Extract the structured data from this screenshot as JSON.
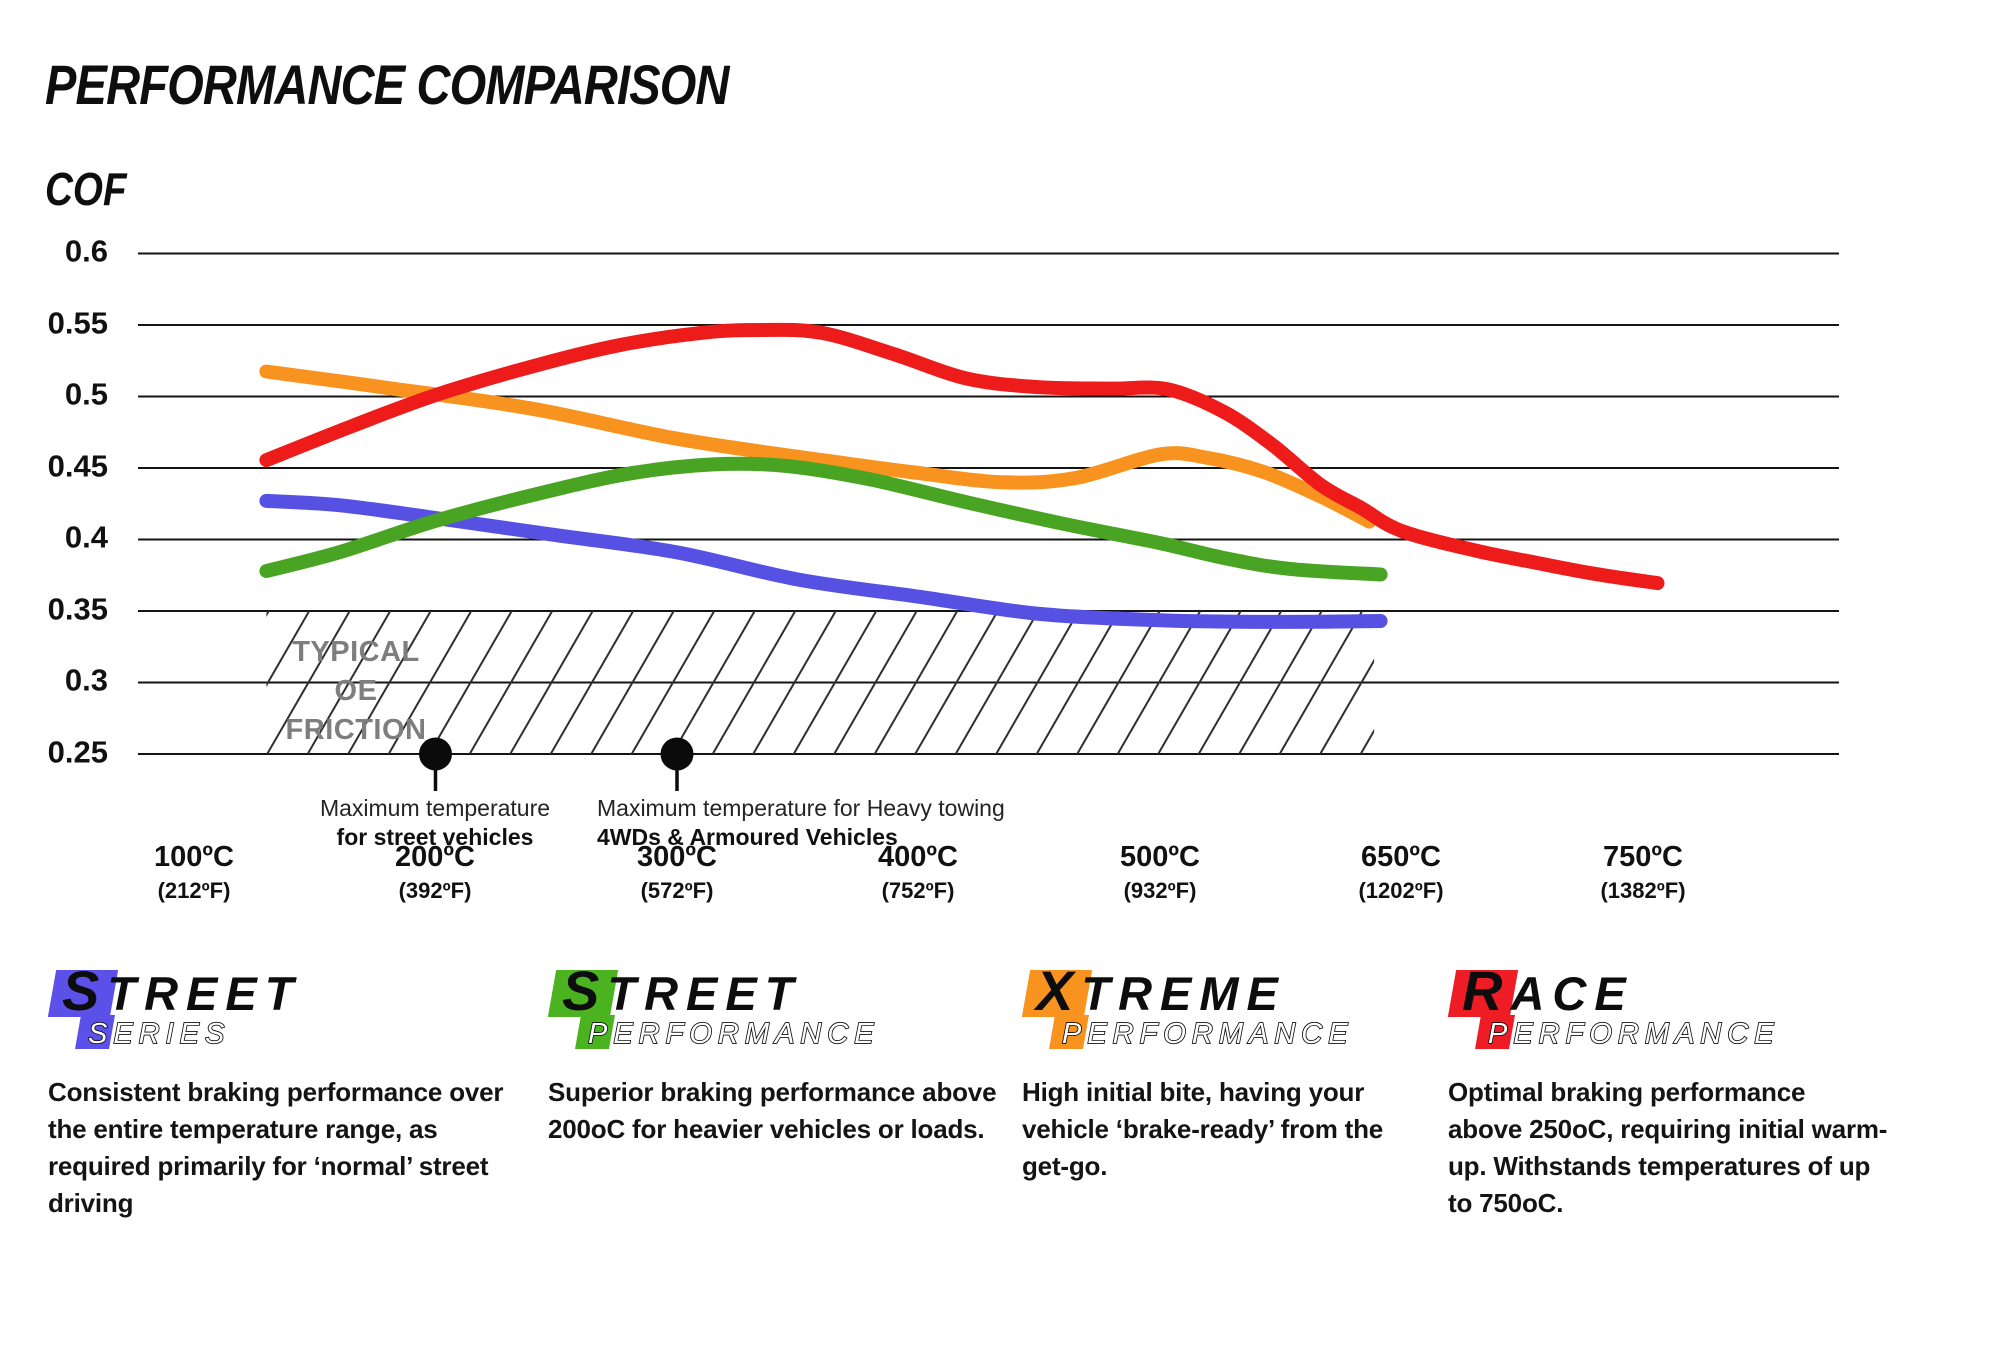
{
  "page": {
    "title": "PERFORMANCE COMPARISON",
    "axis_label": "COF"
  },
  "chart": {
    "y_labels": [
      "0.6",
      "0.55",
      "0.5",
      "0.45",
      "0.4",
      "0.35",
      "0.3",
      "0.25"
    ],
    "x_ticks": [
      {
        "c": "100ºC",
        "f": "(212ºF)"
      },
      {
        "c": "200ºC",
        "f": "(392ºF)"
      },
      {
        "c": "300ºC",
        "f": "(572ºF)"
      },
      {
        "c": "400ºC",
        "f": "(752ºF)"
      },
      {
        "c": "500ºC",
        "f": "(932ºF)"
      },
      {
        "c": "650ºC",
        "f": "(1202ºF)"
      },
      {
        "c": "750ºC",
        "f": "(1382ºF)"
      }
    ],
    "band_label": "TYPICAL OE\nFRICTION",
    "annotations": [
      {
        "line1": "Maximum temperature",
        "line2": "for street vehicles"
      },
      {
        "line1": "Maximum temperature for Heavy towing",
        "line2": "4WDs & Armoured Vehicles"
      }
    ]
  },
  "chart_data": {
    "type": "line",
    "title": "PERFORMANCE COMPARISON",
    "ylabel": "COF",
    "ylim": [
      0.25,
      0.6
    ],
    "y_gridlines": [
      0.6,
      0.55,
      0.5,
      0.45,
      0.4,
      0.35,
      0.3,
      0.25
    ],
    "categories_c": [
      100,
      200,
      300,
      400,
      500,
      650,
      750
    ],
    "x_tick_labels": [
      "100ºC (212ºF)",
      "200ºC (392ºF)",
      "300ºC (572ºF)",
      "400ºC (752ºF)",
      "500ºC (932ºF)",
      "650ºC (1202ºF)",
      "750ºC (1382ºF)"
    ],
    "grid": true,
    "legend_position": "bottom",
    "band": {
      "label": "TYPICAL OE FRICTION",
      "cof_min": 0.25,
      "cof_max": 0.35,
      "temp_min_c": 130,
      "temp_max_c": 633
    },
    "annotations": [
      {
        "temp_c": 200,
        "cof": 0.25,
        "line1": "Maximum temperature",
        "line2": "for street vehicles"
      },
      {
        "temp_c": 300,
        "cof": 0.25,
        "line1": "Maximum temperature for Heavy towing",
        "line2": "4WDs & Armoured Vehicles"
      }
    ],
    "series": [
      {
        "name": "Street Series",
        "color": "#5751E3",
        "points": [
          [
            130,
            0.427
          ],
          [
            160,
            0.424
          ],
          [
            200,
            0.415
          ],
          [
            250,
            0.403
          ],
          [
            300,
            0.391
          ],
          [
            350,
            0.372
          ],
          [
            400,
            0.36
          ],
          [
            450,
            0.348
          ],
          [
            500,
            0.3435
          ],
          [
            550,
            0.3425
          ],
          [
            600,
            0.3425
          ],
          [
            637,
            0.343
          ]
        ]
      },
      {
        "name": "Xtreme Performance",
        "color": "#F7931E",
        "points": [
          [
            130,
            0.5175
          ],
          [
            180,
            0.506
          ],
          [
            240,
            0.4915
          ],
          [
            300,
            0.4705
          ],
          [
            360,
            0.4555
          ],
          [
            400,
            0.4465
          ],
          [
            435,
            0.44
          ],
          [
            465,
            0.443
          ],
          [
            500,
            0.4595
          ],
          [
            530,
            0.457
          ],
          [
            565,
            0.447
          ],
          [
            600,
            0.43
          ],
          [
            630,
            0.4125
          ]
        ]
      },
      {
        "name": "Street Performance",
        "color": "#4AA424",
        "points": [
          [
            130,
            0.378
          ],
          [
            160,
            0.391
          ],
          [
            200,
            0.413
          ],
          [
            240,
            0.431
          ],
          [
            280,
            0.446
          ],
          [
            315,
            0.4525
          ],
          [
            345,
            0.4515
          ],
          [
            380,
            0.442
          ],
          [
            420,
            0.426
          ],
          [
            460,
            0.411
          ],
          [
            500,
            0.3975
          ],
          [
            540,
            0.387
          ],
          [
            580,
            0.3795
          ],
          [
            637,
            0.3755
          ]
        ]
      },
      {
        "name": "Race Performance",
        "color": "#EE1B1B",
        "points": [
          [
            130,
            0.4555
          ],
          [
            165,
            0.479
          ],
          [
            200,
            0.501
          ],
          [
            240,
            0.521
          ],
          [
            275,
            0.5355
          ],
          [
            310,
            0.5445
          ],
          [
            335,
            0.5465
          ],
          [
            360,
            0.5445
          ],
          [
            390,
            0.5295
          ],
          [
            420,
            0.5125
          ],
          [
            450,
            0.5065
          ],
          [
            480,
            0.5055
          ],
          [
            505,
            0.505
          ],
          [
            540,
            0.489
          ],
          [
            570,
            0.466
          ],
          [
            600,
            0.438
          ],
          [
            625,
            0.422
          ],
          [
            650,
            0.406
          ],
          [
            680,
            0.3925
          ],
          [
            705,
            0.384
          ],
          [
            730,
            0.376
          ],
          [
            756,
            0.3695
          ]
        ]
      }
    ]
  },
  "legend": [
    {
      "word1": "STREET",
      "word2": "SERIES",
      "badge_color": "#5B50E8",
      "description": "Consistent braking performance over\nthe entire temperature range, as\nrequired primarily for ‘normal’ street\ndriving"
    },
    {
      "word1": "STREET",
      "word2": "PERFORMANCE",
      "badge_color": "#4CB320",
      "description": "Superior braking performance above\n200oC for heavier vehicles or loads."
    },
    {
      "word1": "XTREME",
      "word2": "PERFORMANCE",
      "badge_color": "#F7931E",
      "description": "High initial bite, having your\nvehicle ‘brake-ready’ from the\nget-go."
    },
    {
      "word1": "RACE",
      "word2": "PERFORMANCE",
      "badge_color": "#EE1C25",
      "description": "Optimal braking performance\nabove 250oC, requiring initial warm-\nup. Withstands temperatures of up\nto 750oC."
    }
  ]
}
